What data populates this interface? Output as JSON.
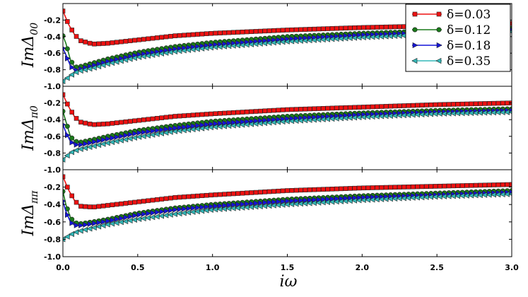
{
  "chart_data": {
    "type": "line",
    "xlabel": "iω",
    "xlim": [
      0.0,
      3.0
    ],
    "x_ticks": [
      "0.0",
      "0.5",
      "1.0",
      "1.5",
      "2.0",
      "2.5",
      "3.0"
    ],
    "ylim": [
      -1.0,
      0.0
    ],
    "y_ticks": [
      "-1.0",
      "-0.8",
      "-0.6",
      "-0.4",
      "-0.2"
    ],
    "legend": {
      "placement": "top-right",
      "entries": [
        "δ=0.03",
        "δ=0.12",
        "δ=0.18",
        "δ=0.35"
      ]
    },
    "series_colors": [
      "#ee1111",
      "#1a7a1a",
      "#1414d8",
      "#33b8b8"
    ],
    "series_markers": [
      "square",
      "circle",
      "triangle-right",
      "triangle-left"
    ],
    "panels": [
      {
        "ylabel": "ImΔ00",
        "series": [
          {
            "legend": "δ=0.03",
            "x": [
              0.0,
              0.04,
              0.08,
              0.12,
              0.2,
              0.3,
              0.5,
              0.75,
              1.0,
              1.5,
              2.0,
              2.5,
              3.0
            ],
            "y": [
              -0.09,
              -0.26,
              -0.38,
              -0.45,
              -0.49,
              -0.48,
              -0.44,
              -0.39,
              -0.36,
              -0.32,
              -0.29,
              -0.27,
              -0.24
            ]
          },
          {
            "legend": "δ=0.12",
            "x": [
              0.0,
              0.02,
              0.05,
              0.08,
              0.12,
              0.2,
              0.3,
              0.5,
              0.75,
              1.0,
              1.5,
              2.0,
              2.5,
              3.0
            ],
            "y": [
              -0.39,
              -0.48,
              -0.68,
              -0.77,
              -0.76,
              -0.72,
              -0.67,
              -0.59,
              -0.52,
              -0.47,
              -0.4,
              -0.36,
              -0.33,
              -0.3
            ]
          },
          {
            "legend": "δ=0.18",
            "x": [
              0.0,
              0.02,
              0.05,
              0.08,
              0.12,
              0.2,
              0.3,
              0.5,
              0.75,
              1.0,
              1.5,
              2.0,
              2.5,
              3.0
            ],
            "y": [
              -0.54,
              -0.62,
              -0.75,
              -0.81,
              -0.79,
              -0.75,
              -0.7,
              -0.62,
              -0.55,
              -0.5,
              -0.43,
              -0.38,
              -0.35,
              -0.32
            ]
          },
          {
            "legend": "δ=0.35",
            "x": [
              0.0,
              0.03,
              0.06,
              0.1,
              0.2,
              0.3,
              0.5,
              0.75,
              1.0,
              1.5,
              2.0,
              2.5,
              3.0
            ],
            "y": [
              -0.94,
              -0.9,
              -0.86,
              -0.82,
              -0.78,
              -0.73,
              -0.65,
              -0.58,
              -0.53,
              -0.46,
              -0.41,
              -0.37,
              -0.34
            ]
          }
        ]
      },
      {
        "ylabel": "ImΔπ0",
        "series": [
          {
            "legend": "δ=0.03",
            "x": [
              0.0,
              0.04,
              0.08,
              0.12,
              0.2,
              0.3,
              0.5,
              0.75,
              1.0,
              1.5,
              2.0,
              2.5,
              3.0
            ],
            "y": [
              -0.1,
              -0.25,
              -0.37,
              -0.43,
              -0.46,
              -0.45,
              -0.41,
              -0.36,
              -0.33,
              -0.28,
              -0.25,
              -0.22,
              -0.2
            ]
          },
          {
            "legend": "δ=0.12",
            "x": [
              0.0,
              0.02,
              0.05,
              0.08,
              0.12,
              0.2,
              0.3,
              0.5,
              0.75,
              1.0,
              1.5,
              2.0,
              2.5,
              3.0
            ],
            "y": [
              -0.3,
              -0.42,
              -0.6,
              -0.66,
              -0.67,
              -0.64,
              -0.6,
              -0.53,
              -0.47,
              -0.42,
              -0.36,
              -0.32,
              -0.29,
              -0.27
            ]
          },
          {
            "legend": "δ=0.18",
            "x": [
              0.0,
              0.02,
              0.05,
              0.08,
              0.12,
              0.2,
              0.3,
              0.5,
              0.75,
              1.0,
              1.5,
              2.0,
              2.5,
              3.0
            ],
            "y": [
              -0.46,
              -0.55,
              -0.66,
              -0.7,
              -0.7,
              -0.67,
              -0.63,
              -0.56,
              -0.5,
              -0.45,
              -0.39,
              -0.34,
              -0.31,
              -0.29
            ]
          },
          {
            "legend": "δ=0.35",
            "x": [
              0.0,
              0.03,
              0.06,
              0.1,
              0.2,
              0.3,
              0.5,
              0.75,
              1.0,
              1.5,
              2.0,
              2.5,
              3.0
            ],
            "y": [
              -0.88,
              -0.83,
              -0.79,
              -0.76,
              -0.72,
              -0.68,
              -0.61,
              -0.54,
              -0.49,
              -0.42,
              -0.37,
              -0.33,
              -0.31
            ]
          }
        ]
      },
      {
        "ylabel": "ImΔππ",
        "series": [
          {
            "legend": "δ=0.03",
            "x": [
              0.0,
              0.04,
              0.08,
              0.12,
              0.2,
              0.3,
              0.5,
              0.75,
              1.0,
              1.5,
              2.0,
              2.5,
              3.0
            ],
            "y": [
              -0.08,
              -0.24,
              -0.36,
              -0.42,
              -0.43,
              -0.41,
              -0.37,
              -0.32,
              -0.29,
              -0.24,
              -0.21,
              -0.19,
              -0.17
            ]
          },
          {
            "legend": "δ=0.12",
            "x": [
              0.0,
              0.02,
              0.05,
              0.08,
              0.12,
              0.2,
              0.3,
              0.5,
              0.75,
              1.0,
              1.5,
              2.0,
              2.5,
              3.0
            ],
            "y": [
              -0.25,
              -0.4,
              -0.55,
              -0.61,
              -0.62,
              -0.6,
              -0.57,
              -0.5,
              -0.44,
              -0.4,
              -0.34,
              -0.3,
              -0.27,
              -0.24
            ]
          },
          {
            "legend": "δ=0.18",
            "x": [
              0.0,
              0.02,
              0.05,
              0.08,
              0.12,
              0.2,
              0.3,
              0.5,
              0.75,
              1.0,
              1.5,
              2.0,
              2.5,
              3.0
            ],
            "y": [
              -0.36,
              -0.48,
              -0.6,
              -0.64,
              -0.64,
              -0.62,
              -0.59,
              -0.52,
              -0.46,
              -0.42,
              -0.36,
              -0.32,
              -0.29,
              -0.26
            ]
          },
          {
            "legend": "δ=0.35",
            "x": [
              0.0,
              0.03,
              0.06,
              0.1,
              0.2,
              0.3,
              0.5,
              0.75,
              1.0,
              1.5,
              2.0,
              2.5,
              3.0
            ],
            "y": [
              -0.8,
              -0.77,
              -0.74,
              -0.71,
              -0.67,
              -0.63,
              -0.57,
              -0.51,
              -0.46,
              -0.4,
              -0.35,
              -0.31,
              -0.28
            ]
          }
        ]
      }
    ]
  }
}
